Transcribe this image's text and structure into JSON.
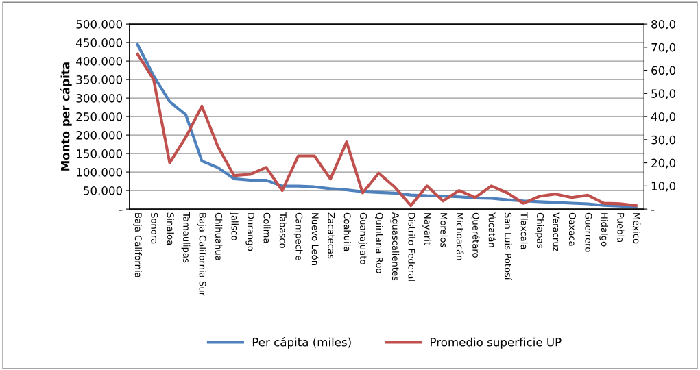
{
  "chart_data": {
    "type": "line",
    "ylabel": "Monto per cápita",
    "categories": [
      "Baja California",
      "Sonora",
      "Sinaloa",
      "Tamaulipas",
      "Baja California Sur",
      "Chihuahua",
      "Jalisco",
      "Durango",
      "Colima",
      "Tabasco",
      "Campeche",
      "Nuevo León",
      "Zacatecas",
      "Coahuila",
      "Guanajuato",
      "Quintana Roo",
      "Aguascalientes",
      "Distrito Federal",
      "Nayarit",
      "Morelos",
      "Michoacán",
      "Querétaro",
      "Yucatán",
      "San Luis Potosí",
      "Tlaxcala",
      "Chiapas",
      "Veracruz",
      "Oaxaca",
      "Guerrero",
      "Hidalgo",
      "Puebla",
      "México"
    ],
    "series": [
      {
        "name": "Per cápita (miles)",
        "color": "#4f81bd",
        "values": [
          445000,
          360000,
          290000,
          255000,
          130000,
          112000,
          82000,
          78000,
          78000,
          62000,
          62000,
          60000,
          55000,
          52000,
          47000,
          45000,
          43000,
          38000,
          36000,
          35000,
          33000,
          30000,
          29000,
          25000,
          22000,
          20000,
          18000,
          16000,
          14000,
          10000,
          8000,
          5000
        ]
      },
      {
        "name": "Promedio superficie UP",
        "color": "#c0504d",
        "axis": "y2",
        "values": [
          67,
          56,
          20,
          31,
          44.5,
          27,
          14.5,
          15,
          18,
          8,
          23,
          23,
          13,
          29,
          7,
          15.5,
          9.5,
          1.5,
          10,
          3.5,
          8,
          5,
          10,
          7,
          2.5,
          5.5,
          6.5,
          5,
          6,
          2.5,
          2.3,
          1.5
        ]
      }
    ],
    "ylim": [
      0,
      500000
    ],
    "yticks": [
      {
        "value": 0,
        "label": "-"
      },
      {
        "value": 50000,
        "label": "50.000"
      },
      {
        "value": 100000,
        "label": "100.000"
      },
      {
        "value": 150000,
        "label": "150.000"
      },
      {
        "value": 200000,
        "label": "200.000"
      },
      {
        "value": 250000,
        "label": "250.000"
      },
      {
        "value": 300000,
        "label": "300.000"
      },
      {
        "value": 350000,
        "label": "350.000"
      },
      {
        "value": 400000,
        "label": "400.000"
      },
      {
        "value": 450000,
        "label": "450.000"
      },
      {
        "value": 500000,
        "label": "500.000"
      }
    ],
    "y2lim": [
      0,
      80
    ],
    "y2ticks": [
      {
        "value": 0,
        "label": "-"
      },
      {
        "value": 10,
        "label": "10,0"
      },
      {
        "value": 20,
        "label": "20,0"
      },
      {
        "value": 30,
        "label": "30,0"
      },
      {
        "value": 40,
        "label": "40,0"
      },
      {
        "value": 50,
        "label": "50,0"
      },
      {
        "value": 60,
        "label": "60,0"
      },
      {
        "value": 70,
        "label": "70,0"
      },
      {
        "value": 80,
        "label": "80,0"
      }
    ],
    "grid": "y",
    "legend": "bottom",
    "marker": "none",
    "line_style": "solid"
  }
}
